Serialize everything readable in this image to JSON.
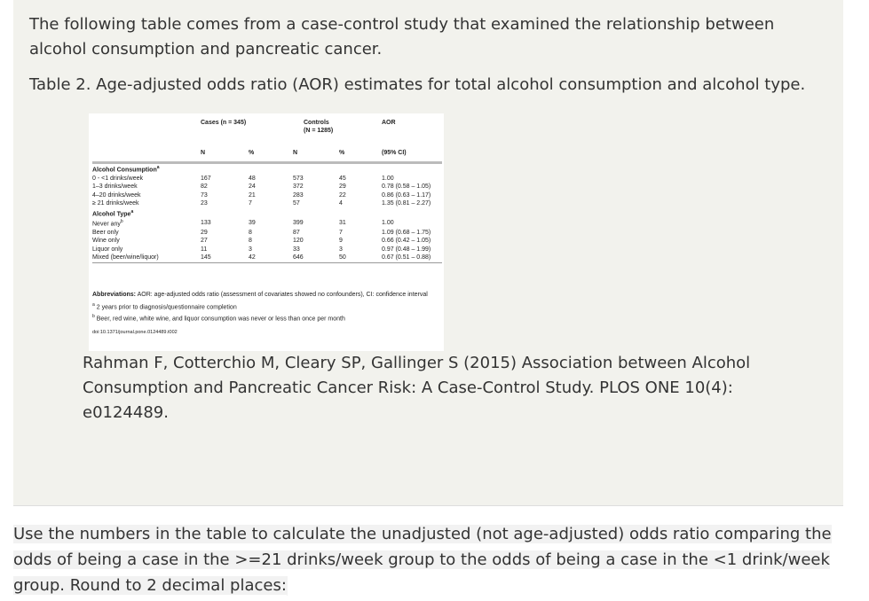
{
  "intro": "The following table comes from a case-control study that examined the relationship between alcohol consumption and pancreatic cancer.",
  "caption": "Table 2. Age-adjusted odds ratio (AOR) estimates for total alcohol consumption and alcohol type.",
  "table": {
    "header": {
      "cases": "Cases (n = 345)",
      "controls": [
        "Controls",
        "(N = 1285)"
      ],
      "aor": "AOR",
      "subheads": [
        "N",
        "%",
        "N",
        "%",
        "(95% CI)"
      ]
    },
    "rows": [
      {
        "label": "Alcohol Consumption",
        "sup": "a"
      },
      {
        "label": "0 - <1 drinks/week",
        "cells": [
          "167",
          "48",
          "573",
          "45",
          "1.00"
        ]
      },
      {
        "label": "1–3 drinks/week",
        "cells": [
          "82",
          "24",
          "372",
          "29",
          "0.78 (0.58 – 1.05)"
        ]
      },
      {
        "label": "4–20 drinks/week",
        "cells": [
          "73",
          "21",
          "283",
          "22",
          "0.86 (0.63 – 1.17)"
        ]
      },
      {
        "label": "≥ 21 drinks/week",
        "cells": [
          "23",
          "7",
          "57",
          "4",
          "1.35 (0.81 – 2.27)"
        ]
      },
      {
        "label": "Alcohol Type",
        "sup": "a"
      },
      {
        "label": "Never any",
        "sup": "b",
        "cells": [
          "133",
          "39",
          "399",
          "31",
          "1.00"
        ]
      },
      {
        "label": "Beer only",
        "cells": [
          "29",
          "8",
          "87",
          "7",
          "1.09 (0.68 – 1.75)"
        ]
      },
      {
        "label": "Wine only",
        "cells": [
          "27",
          "8",
          "120",
          "9",
          "0.66 (0.42 – 1.05)"
        ]
      },
      {
        "label": "Liquor only",
        "cells": [
          "11",
          "3",
          "33",
          "3",
          "0.97 (0.48 – 1.99)"
        ]
      },
      {
        "label": "Mixed (beer/wine/liquor)",
        "cells": [
          "145",
          "42",
          "646",
          "50",
          "0.67 (0.51 – 0.88)"
        ]
      }
    ],
    "abbreviations": {
      "term": "Abbreviations:",
      "text": "AOR: age-adjusted odds ratio (assessment of covariates showed no confounders), CI: confidence interval"
    },
    "notes": [
      {
        "mark": "a",
        "text": "2 years prior to diagnosis/questionnaire completion"
      },
      {
        "mark": "b",
        "text": "Beer, red wine, white wine, and liquor consumption was never or less than once per month"
      }
    ],
    "doi": "doi:10.1371/journal.pone.0124489.t002"
  },
  "citation": "Rahman F, Cotterchio M, Cleary SP, Gallinger S (2015) Association between Alcohol Consumption and Pancreatic Cancer Risk: A Case-Control Study. PLOS ONE 10(4): e0124489.",
  "question": "Use the numbers in the table to calculate the unadjusted (not age-adjusted) odds ratio comparing the odds of being a case in the >=21 drinks/week group to the odds of being a case in the <1 drink/week group. Round to 2 decimal places:"
}
